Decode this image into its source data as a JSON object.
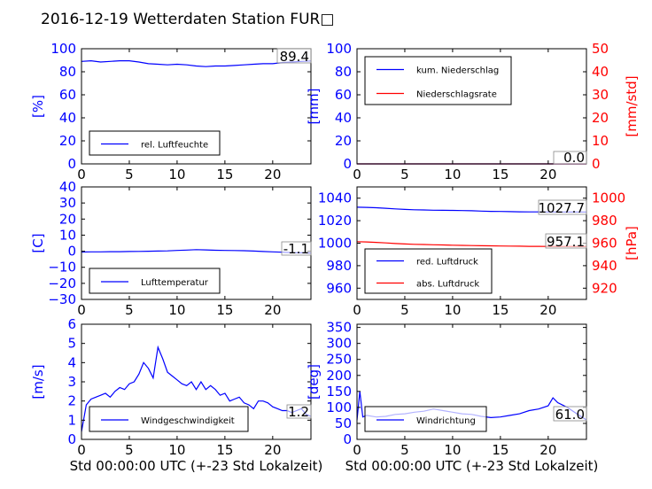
{
  "title": "2016-12-19 Wetterdaten Station FUR□",
  "chart_data": [
    {
      "type": "line",
      "ylabel": "[%]",
      "xlim": [
        0,
        24
      ],
      "ylim": [
        0,
        100
      ],
      "yticks": [
        "0",
        "20",
        "40",
        "60",
        "80",
        "100"
      ],
      "xticks": [
        "0",
        "5",
        "10",
        "15",
        "20"
      ],
      "legend": "lower-left",
      "current_value": "89.4",
      "series": [
        {
          "name": "rel. Luftfeuchte",
          "color": "#0000ff",
          "x": [
            0,
            1,
            2,
            3,
            4,
            5,
            6,
            7,
            8,
            9,
            10,
            11,
            12,
            13,
            14,
            15,
            16,
            17,
            18,
            19,
            20,
            21,
            22,
            23,
            24
          ],
          "y": [
            89,
            89.5,
            88.5,
            89,
            89.5,
            89.5,
            88.5,
            87,
            86.5,
            86,
            86.5,
            86,
            85,
            84.5,
            85,
            85,
            85.5,
            86,
            86.5,
            87,
            87,
            88,
            88.5,
            89,
            89.4
          ]
        }
      ]
    },
    {
      "type": "line",
      "ylabel": "[mm]",
      "ylabel2": "[mm/std]",
      "xlim": [
        0,
        24
      ],
      "ylim": [
        0,
        100
      ],
      "y2lim": [
        0,
        50
      ],
      "yticks": [
        "0",
        "20",
        "40",
        "60",
        "80",
        "100"
      ],
      "y2ticks": [
        "0",
        "10",
        "20",
        "30",
        "40",
        "50"
      ],
      "xticks": [
        "0",
        "5",
        "10",
        "15",
        "20"
      ],
      "legend": "upper-left",
      "current_value": "0.0",
      "current_value2": "0.0",
      "series": [
        {
          "name": "kum. Niederschlag",
          "color": "#0000ff",
          "x": [
            0,
            24
          ],
          "y": [
            0,
            0
          ]
        },
        {
          "name": "Niederschlagsrate",
          "color": "#ff0000",
          "x": [
            0,
            24
          ],
          "y": [
            0,
            0
          ]
        }
      ]
    },
    {
      "type": "line",
      "ylabel": "[C]",
      "xlim": [
        0,
        24
      ],
      "ylim": [
        -30,
        40
      ],
      "yticks": [
        "−30",
        "−20",
        "−10",
        "0",
        "10",
        "20",
        "30",
        "40"
      ],
      "xticks": [
        "0",
        "5",
        "10",
        "15",
        "20"
      ],
      "legend": "lower-left",
      "current_value": "-1.1",
      "series": [
        {
          "name": "Lufttemperatur",
          "color": "#0000ff",
          "x": [
            0,
            1,
            2,
            3,
            4,
            5,
            6,
            7,
            8,
            9,
            10,
            11,
            12,
            13,
            14,
            15,
            16,
            17,
            18,
            19,
            20,
            21,
            22,
            23,
            24
          ],
          "y": [
            -0.5,
            -0.4,
            -0.4,
            -0.3,
            -0.3,
            -0.2,
            -0.1,
            0,
            0.1,
            0.2,
            0.5,
            0.7,
            1.0,
            0.8,
            0.6,
            0.5,
            0.4,
            0.3,
            0.1,
            -0.2,
            -0.4,
            -0.6,
            -0.9,
            -1.0,
            -1.1
          ]
        }
      ]
    },
    {
      "type": "line",
      "ylabel2": "[hPa]",
      "xlim": [
        0,
        24
      ],
      "ylim": [
        950,
        1050
      ],
      "y2lim": [
        910,
        1010
      ],
      "yticks": [
        "960",
        "980",
        "1000",
        "1020",
        "1040"
      ],
      "y2ticks": [
        "920",
        "940",
        "960",
        "980",
        "1000"
      ],
      "xticks": [
        "0",
        "5",
        "10",
        "15",
        "20"
      ],
      "legend": "lower-left",
      "current_value": "1027.7",
      "current_value2": "957.1",
      "series": [
        {
          "name": "red. Luftdruck",
          "color": "#0000ff",
          "x": [
            0,
            1,
            2,
            3,
            4,
            5,
            6,
            7,
            8,
            9,
            10,
            11,
            12,
            13,
            14,
            15,
            16,
            17,
            18,
            19,
            20,
            21,
            22,
            23,
            24
          ],
          "y": [
            1032,
            1031.8,
            1031.5,
            1031,
            1030.5,
            1030,
            1029.7,
            1029.5,
            1029.3,
            1029.2,
            1029.1,
            1029,
            1028.8,
            1028.5,
            1028.3,
            1028.2,
            1028,
            1027.9,
            1027.8,
            1027.8,
            1027.7,
            1027.7,
            1027.7,
            1027.7,
            1027.7
          ]
        },
        {
          "name": "abs. Luftdruck",
          "color": "#ff0000",
          "x": [
            0,
            1,
            2,
            3,
            4,
            5,
            6,
            7,
            8,
            9,
            10,
            11,
            12,
            13,
            14,
            15,
            16,
            17,
            18,
            19,
            20,
            21,
            22,
            23,
            24
          ],
          "y": [
            961.3,
            961.1,
            960.7,
            960.2,
            959.7,
            959.3,
            959,
            958.8,
            958.6,
            958.4,
            958.2,
            958,
            957.9,
            957.7,
            957.6,
            957.5,
            957.4,
            957.3,
            957.2,
            957.2,
            957.1,
            957.1,
            957.1,
            957.1,
            957.1
          ]
        }
      ]
    },
    {
      "type": "line",
      "ylabel": "[m/s]",
      "xlabel": "Std 00:00:00 UTC (+-23 Std Lokalzeit)",
      "xlim": [
        0,
        24
      ],
      "ylim": [
        0,
        6
      ],
      "yticks": [
        "0",
        "1",
        "2",
        "3",
        "4",
        "5",
        "6"
      ],
      "xticks": [
        "0",
        "5",
        "10",
        "15",
        "20"
      ],
      "legend": "lower-center",
      "current_value": "1.2",
      "series": [
        {
          "name": "Windgeschwindigkeit",
          "color": "#0000ff",
          "x": [
            0,
            0.5,
            1,
            1.5,
            2,
            2.5,
            3,
            3.5,
            4,
            4.5,
            5,
            5.5,
            6,
            6.5,
            7,
            7.5,
            8,
            8.5,
            9,
            9.5,
            10,
            10.5,
            11,
            11.5,
            12,
            12.5,
            13,
            13.5,
            14,
            14.5,
            15,
            15.5,
            16,
            16.5,
            17,
            17.5,
            18,
            18.5,
            19,
            19.5,
            20,
            20.5,
            21,
            21.5,
            22,
            22.5,
            23,
            23.5,
            24
          ],
          "y": [
            0.4,
            1.8,
            2.1,
            2.2,
            2.3,
            2.4,
            2.2,
            2.5,
            2.7,
            2.6,
            2.9,
            3.0,
            3.4,
            4.0,
            3.7,
            3.2,
            4.8,
            4.2,
            3.5,
            3.3,
            3.1,
            2.9,
            2.8,
            3.0,
            2.6,
            3.0,
            2.6,
            2.8,
            2.6,
            2.3,
            2.4,
            2.0,
            2.1,
            2.2,
            1.9,
            1.8,
            1.6,
            2.0,
            2.0,
            1.9,
            1.7,
            1.6,
            1.5,
            1.5,
            1.4,
            1.5,
            1.6,
            1.3,
            1.2
          ]
        }
      ]
    },
    {
      "type": "line",
      "ylabel": "[deg]",
      "xlabel": "Std 00:00:00 UTC (+-23 Std Lokalzeit)",
      "xlim": [
        0,
        24
      ],
      "ylim": [
        0,
        360
      ],
      "yticks": [
        "0",
        "50",
        "100",
        "150",
        "200",
        "250",
        "300",
        "350"
      ],
      "xticks": [
        "0",
        "5",
        "10",
        "15",
        "20"
      ],
      "legend": "lower-left",
      "current_value": "61.0",
      "series": [
        {
          "name": "Windrichtung",
          "color": "#0000ff",
          "x": [
            0,
            0.3,
            0.6,
            1,
            2,
            3,
            4,
            5,
            6,
            7,
            8,
            9,
            10,
            11,
            12,
            13,
            14,
            15,
            16,
            17,
            18,
            19,
            20,
            20.5,
            21,
            22,
            23,
            24
          ],
          "y": [
            60,
            150,
            70,
            75,
            70,
            72,
            78,
            80,
            85,
            88,
            95,
            90,
            85,
            80,
            78,
            72,
            68,
            70,
            75,
            80,
            90,
            95,
            105,
            130,
            115,
            100,
            80,
            61
          ]
        }
      ]
    }
  ]
}
